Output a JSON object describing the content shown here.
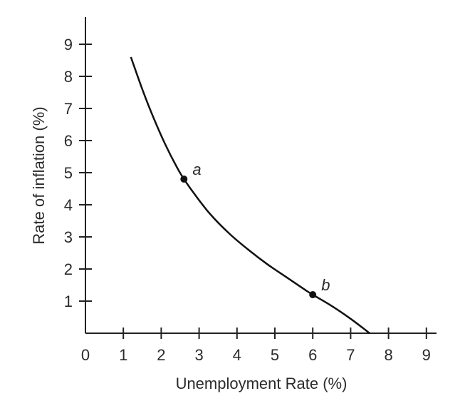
{
  "chart_data": {
    "type": "line",
    "xlabel": "Unemployment Rate (%)",
    "ylabel": "Rate of inflation (%)",
    "xlim": [
      0,
      9
    ],
    "ylim": [
      0,
      9
    ],
    "x_ticks": [
      "0",
      "1",
      "2",
      "3",
      "4",
      "5",
      "6",
      "7",
      "8",
      "9"
    ],
    "y_ticks": [
      "1",
      "2",
      "3",
      "4",
      "5",
      "6",
      "7",
      "8",
      "9"
    ],
    "grid": false,
    "legend": "none",
    "series": [
      {
        "x": [
          1.2,
          1.5,
          1.8,
          2.1,
          2.4,
          2.6,
          2.9,
          3.3,
          3.8,
          4.3,
          4.8,
          5.3,
          5.8,
          6.0,
          6.5,
          7.0,
          7.5
        ],
        "y": [
          8.6,
          7.6,
          6.7,
          5.9,
          5.2,
          4.8,
          4.3,
          3.7,
          3.1,
          2.6,
          2.15,
          1.75,
          1.35,
          1.2,
          0.85,
          0.45,
          0.0
        ],
        "color": "#111111"
      }
    ],
    "points": [
      {
        "label": "a",
        "x": 2.6,
        "y": 4.8
      },
      {
        "label": "b",
        "x": 6.0,
        "y": 1.2
      }
    ]
  }
}
